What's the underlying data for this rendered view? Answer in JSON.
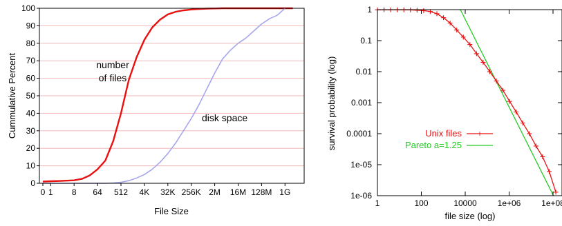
{
  "chart_data": [
    {
      "type": "line",
      "xlabel": "File Size",
      "ylabel": "Cummulative Percent",
      "ylim": [
        0,
        100
      ],
      "y_ticks": [
        0,
        10,
        20,
        30,
        40,
        50,
        60,
        70,
        80,
        90,
        100
      ],
      "x_ticks": [
        "0",
        "1",
        "8",
        "64",
        "512",
        "4K",
        "32K",
        "256K",
        "2M",
        "16M",
        "128M",
        "1G"
      ],
      "grid": "horizontal",
      "series": [
        {
          "name": "number of files",
          "color": "#e81010",
          "x": [
            "0",
            "1",
            "2",
            "4",
            "8",
            "16",
            "32",
            "64",
            "128",
            "256",
            "512",
            "1K",
            "2K",
            "4K",
            "8K",
            "16K",
            "32K",
            "64K",
            "128K",
            "256K",
            "512K",
            "1M",
            "2M",
            "4M",
            "8M",
            "16M",
            "32M",
            "64M",
            "128M",
            "256M",
            "512M",
            "1G",
            "2G"
          ],
          "values": [
            1,
            1.2,
            1.3,
            1.5,
            1.7,
            2.5,
            4.5,
            8,
            13,
            24,
            40,
            59,
            72,
            82,
            89,
            93.5,
            96.5,
            98,
            98.8,
            99.3,
            99.6,
            99.8,
            99.9,
            100,
            100,
            100,
            100,
            100,
            100,
            100,
            100,
            100,
            100
          ]
        },
        {
          "name": "disk space",
          "color": "#a6a6ec",
          "x": [
            "0",
            "1",
            "2",
            "4",
            "8",
            "16",
            "32",
            "64",
            "128",
            "256",
            "512",
            "1K",
            "2K",
            "4K",
            "8K",
            "16K",
            "32K",
            "64K",
            "128K",
            "256K",
            "512K",
            "1M",
            "2M",
            "4M",
            "8M",
            "16M",
            "32M",
            "64M",
            "128M",
            "256M",
            "512M",
            "1G"
          ],
          "values": [
            0,
            0,
            0,
            0,
            0,
            0,
            0,
            0,
            0,
            0.2,
            0.6,
            1.5,
            3,
            5,
            8,
            12,
            17,
            23,
            30,
            37,
            45,
            54,
            63,
            71,
            76,
            80,
            83,
            87,
            91,
            94,
            96,
            100
          ]
        }
      ]
    },
    {
      "type": "line",
      "xlabel": "file size (log)",
      "ylabel": "survival probability (log)",
      "xscale": "log",
      "yscale": "log",
      "xlim": [
        1,
        100000000
      ],
      "ylim": [
        1e-06,
        1
      ],
      "x_ticks": [
        "1",
        "100",
        "10000",
        "1e+06",
        "1e+08"
      ],
      "y_ticks": [
        "1",
        "0.1",
        "0.01",
        "0.001",
        "0.0001",
        "1e-05",
        "1e-06"
      ],
      "legend": "center-right",
      "series": [
        {
          "name": "Unix files",
          "color": "#e81010",
          "marker": "+",
          "x": [
            1,
            2,
            4,
            8,
            16,
            32,
            64,
            128,
            256,
            512,
            1024,
            2048,
            4096,
            8192,
            16384,
            32768,
            65536,
            131072,
            262144,
            524288,
            1048576,
            2097152,
            4194304,
            8388608,
            16777216,
            33554432,
            67108864,
            134217728
          ],
          "values": [
            0.99,
            0.99,
            0.99,
            0.99,
            0.985,
            0.98,
            0.96,
            0.93,
            0.87,
            0.74,
            0.55,
            0.37,
            0.22,
            0.13,
            0.075,
            0.038,
            0.02,
            0.01,
            0.005,
            0.0025,
            0.0011,
            0.0005,
            0.00022,
            0.0001,
            4e-05,
            1.8e-05,
            6e-06,
            1.3e-06
          ]
        },
        {
          "name": "Pareto a=1.25",
          "color": "#22cc22",
          "x": [
            6000,
            150000000
          ],
          "values": [
            1,
            6e-07
          ]
        }
      ]
    }
  ]
}
